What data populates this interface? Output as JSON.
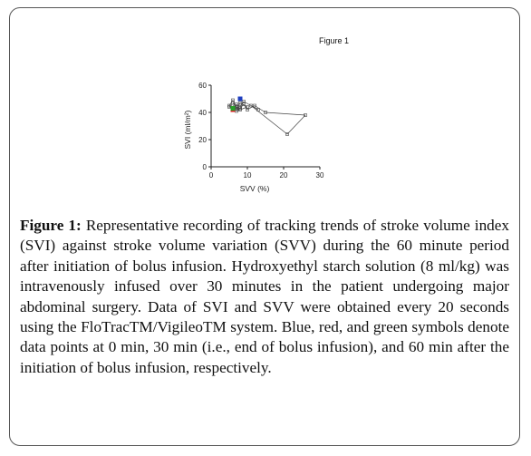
{
  "figure_label": "Figure 1",
  "caption": {
    "label": "Figure 1:",
    "text": "Representative recording of tracking trends of stroke volume index (SVI) against stroke volume variation (SVV) during the 60 minute period after initiation of bolus infusion. Hydroxyethyl starch solution (8 ml/kg) was intravenously infused over 30 minutes in the patient undergoing major abdominal surgery. Data of SVI and SVV were obtained every 20 seconds using the FloTracTM/VigileoTM system. Blue, red, and green symbols denote data points at 0 min, 30 min (i.e., end of bolus infusion), and 60 min after the initiation of bolus infusion, respectively."
  },
  "chart_data": {
    "type": "line",
    "xlabel": "SVV (%)",
    "ylabel": "SVI (ml/m²)",
    "xlim": [
      0,
      30
    ],
    "ylim": [
      0,
      60
    ],
    "xticks": [
      "0",
      "10",
      "20",
      "30"
    ],
    "yticks": [
      "0",
      "20",
      "40",
      "60"
    ],
    "colors": {
      "trace": "#444444",
      "start": "#1f3fbf",
      "end_infusion": "#d22020",
      "final": "#2aa02a"
    },
    "x": [
      6,
      7,
      8,
      9,
      10,
      12,
      15,
      26,
      21,
      11,
      13,
      9,
      8,
      7,
      6,
      5,
      6,
      7,
      8,
      10,
      7,
      6,
      8,
      5,
      6
    ],
    "y": [
      47,
      44,
      43,
      46,
      42,
      45,
      40,
      38,
      24,
      45,
      42,
      48,
      44,
      46,
      42,
      45,
      49,
      43,
      47,
      44,
      41,
      45,
      42,
      44,
      43
    ],
    "markers": [
      {
        "label": "0 min",
        "x": 8,
        "y": 50,
        "color": "#1f3fbf"
      },
      {
        "label": "30 min",
        "x": 6,
        "y": 42,
        "color": "#d22020"
      },
      {
        "label": "60 min",
        "x": 6,
        "y": 43,
        "color": "#2aa02a"
      }
    ]
  }
}
